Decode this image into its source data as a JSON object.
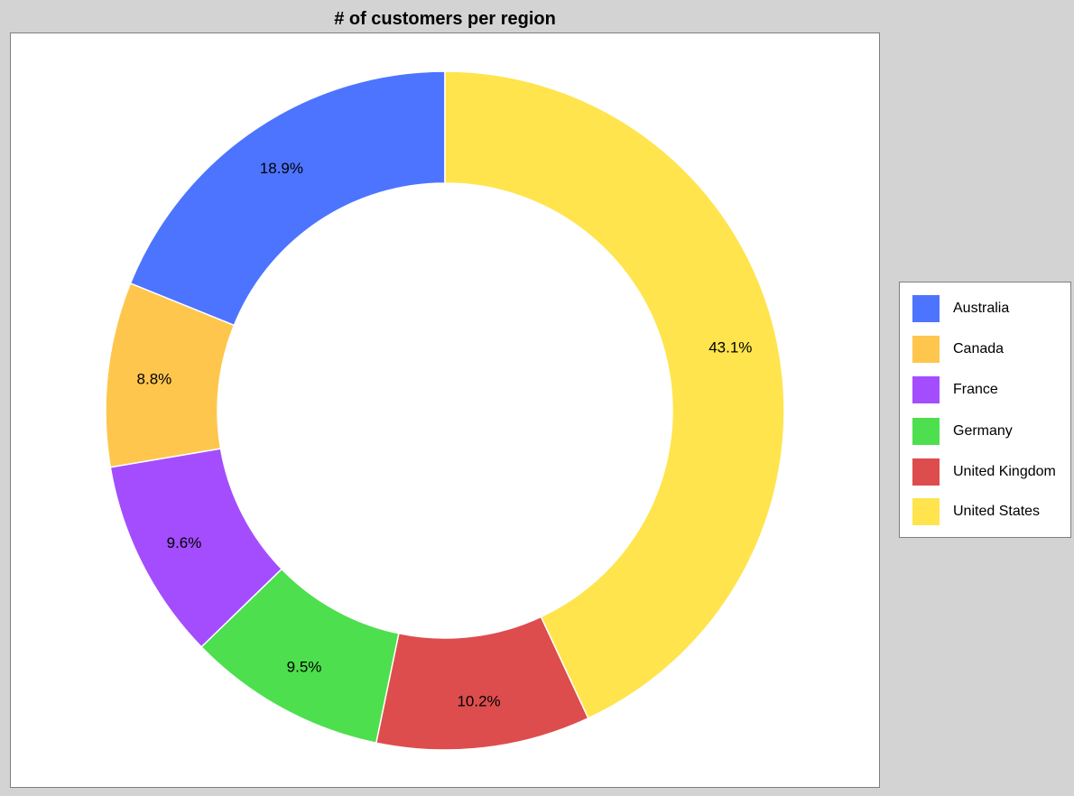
{
  "chart_data": {
    "type": "pie",
    "title": "# of customers per region",
    "categories": [
      "Australia",
      "Canada",
      "France",
      "Germany",
      "United Kingdom",
      "United States"
    ],
    "values": [
      18.9,
      8.8,
      9.6,
      9.5,
      10.2,
      43.1
    ],
    "labels": [
      "18.9%",
      "8.8%",
      "9.6%",
      "9.5%",
      "10.2%",
      "43.1%"
    ],
    "colors": [
      "#4d74ff",
      "#ffc64d",
      "#a34dff",
      "#4ddf4d",
      "#dd4d4d",
      "#ffe44d"
    ],
    "donut": true,
    "legend_position": "right"
  }
}
